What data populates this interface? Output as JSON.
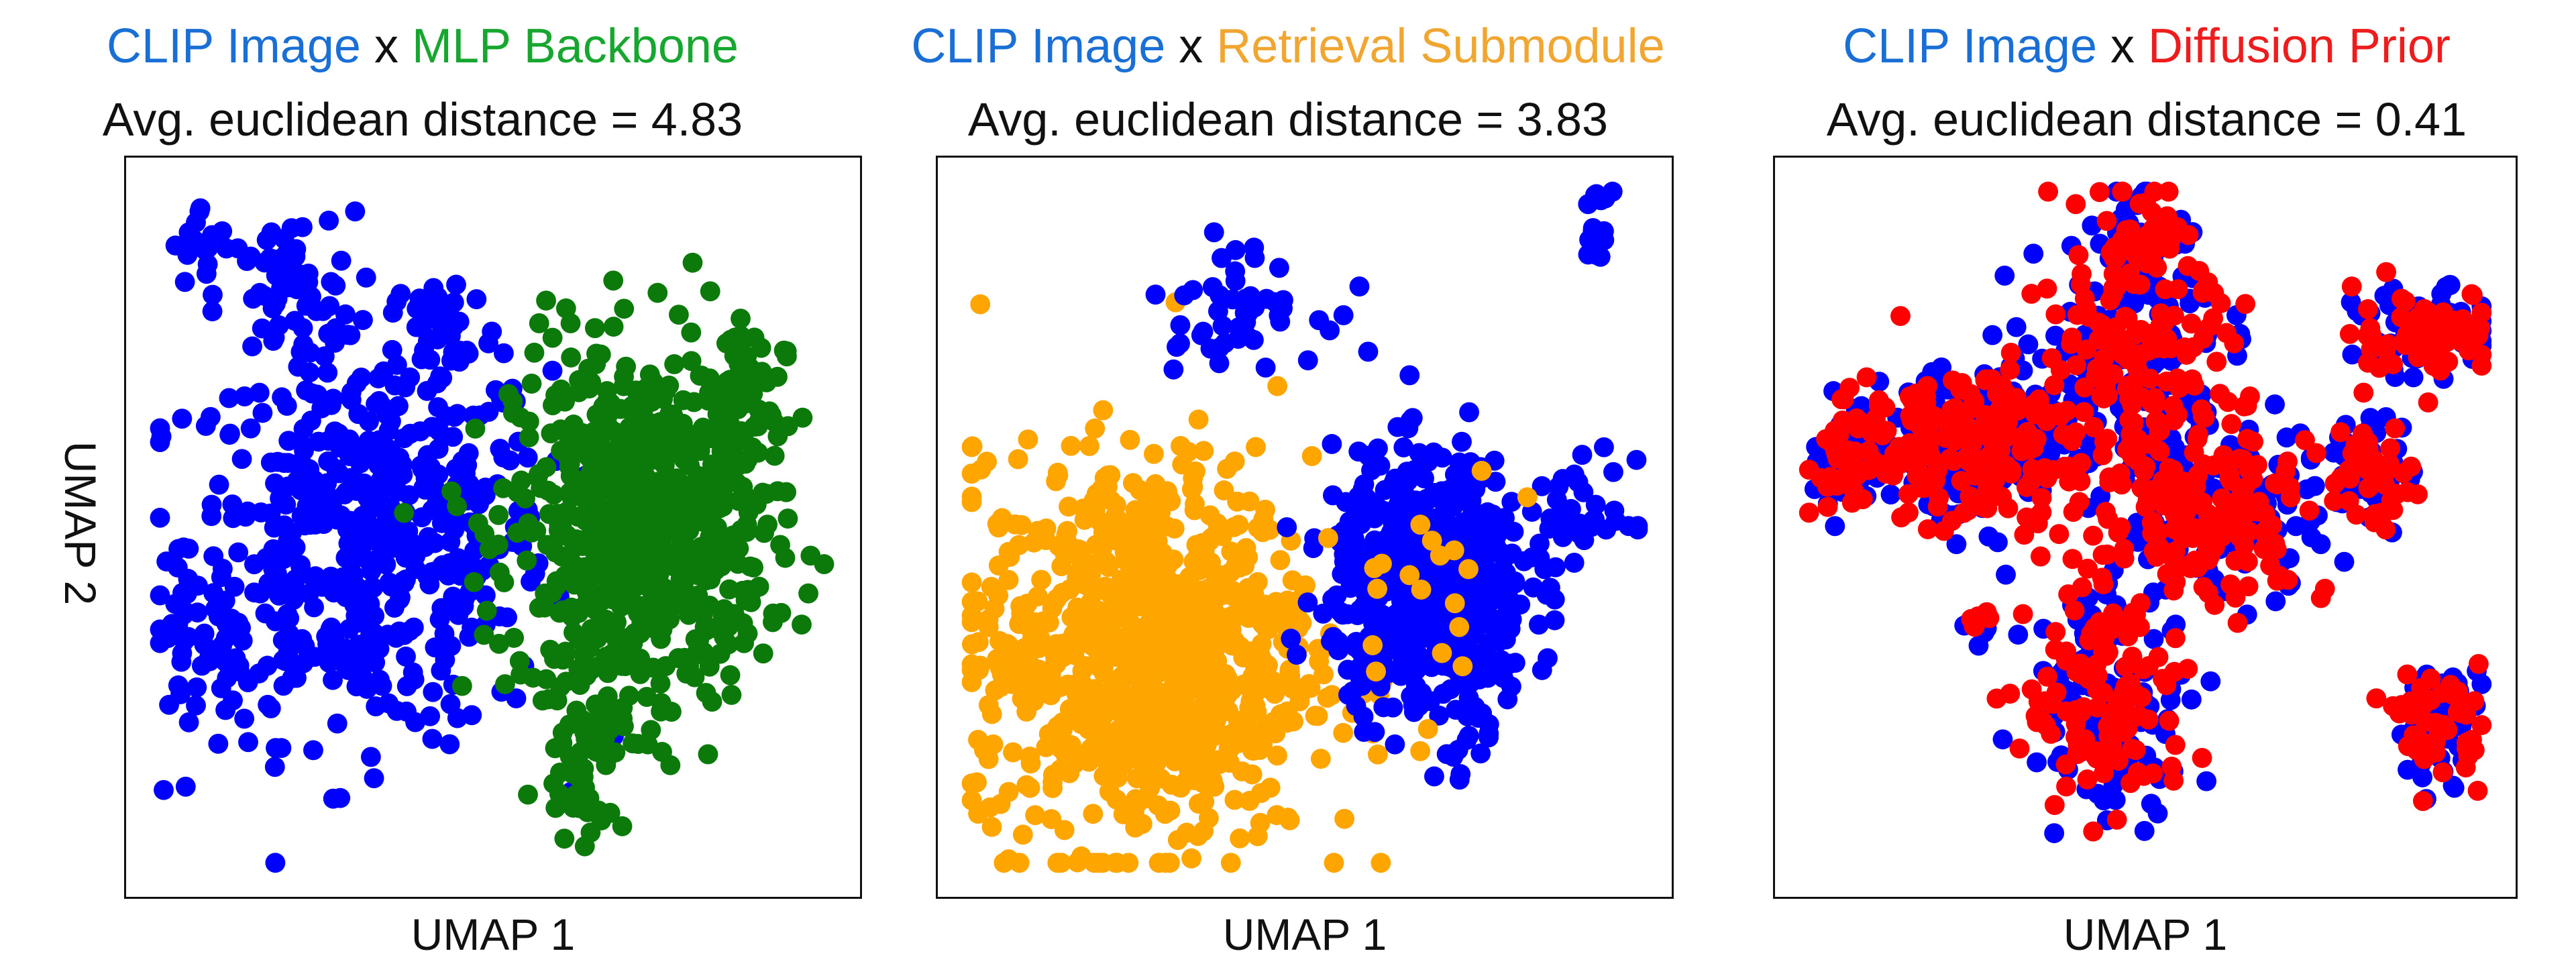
{
  "colors": {
    "clip": "#1a6fd6",
    "mlp": "#17a62f",
    "retrieval": "#f0a631",
    "diffusion": "#ee1c1c",
    "blue_pts": "#0000ff",
    "green_pts": "#0b7a0b",
    "orange_pts": "#ffa500",
    "red_pts": "#ff0000"
  },
  "panels": [
    {
      "title_a": "CLIP Image",
      "sep": "x",
      "title_b": "MLP Backbone",
      "subtitle": "Avg. euclidean distance = 4.83",
      "xlabel": "UMAP 1",
      "ylabel": "UMAP 2"
    },
    {
      "title_a": "CLIP Image",
      "sep": "x",
      "title_b": "Retrieval Submodule",
      "subtitle": "Avg. euclidean distance = 3.83",
      "xlabel": "UMAP 1"
    },
    {
      "title_a": "CLIP Image",
      "sep": "x",
      "title_b": "Diffusion Prior",
      "subtitle": "Avg. euclidean distance = 0.41",
      "xlabel": "UMAP 1"
    }
  ],
  "chart_data": [
    {
      "type": "scatter",
      "title": "CLIP Image x MLP Backbone",
      "subtitle": "Avg. euclidean distance = 4.83",
      "xlabel": "UMAP 1",
      "ylabel": "UMAP 2",
      "series": [
        {
          "name": "CLIP Image",
          "color": "#0000ff",
          "clusters": [
            {
              "x": 0.32,
              "y": 0.48,
              "sx": 0.13,
              "sy": 0.14,
              "n": 520
            },
            {
              "x": 0.08,
              "y": 0.33,
              "sx": 0.04,
              "sy": 0.05,
              "n": 40
            },
            {
              "x": 0.2,
              "y": 0.83,
              "sx": 0.05,
              "sy": 0.06,
              "n": 60
            },
            {
              "x": 0.43,
              "y": 0.78,
              "sx": 0.04,
              "sy": 0.05,
              "n": 40
            },
            {
              "x": 0.08,
              "y": 0.9,
              "sx": 0.02,
              "sy": 0.03,
              "n": 20
            }
          ]
        },
        {
          "name": "MLP Backbone",
          "color": "#0b7a0b",
          "clusters": [
            {
              "x": 0.71,
              "y": 0.5,
              "sx": 0.09,
              "sy": 0.13,
              "n": 700
            },
            {
              "x": 0.63,
              "y": 0.2,
              "sx": 0.03,
              "sy": 0.07,
              "n": 60
            },
            {
              "x": 0.86,
              "y": 0.68,
              "sx": 0.03,
              "sy": 0.06,
              "n": 60
            }
          ]
        }
      ]
    },
    {
      "type": "scatter",
      "title": "CLIP Image x Retrieval Submodule",
      "subtitle": "Avg. euclidean distance = 3.83",
      "xlabel": "UMAP 1",
      "series": [
        {
          "name": "Retrieval Submodule",
          "color": "#ffa500",
          "clusters": [
            {
              "x": 0.27,
              "y": 0.32,
              "sx": 0.12,
              "sy": 0.14,
              "n": 900
            }
          ]
        },
        {
          "name": "CLIP Image",
          "color": "#0000ff",
          "clusters": [
            {
              "x": 0.68,
              "y": 0.42,
              "sx": 0.07,
              "sy": 0.09,
              "n": 600
            },
            {
              "x": 0.4,
              "y": 0.82,
              "sx": 0.06,
              "sy": 0.04,
              "n": 50
            },
            {
              "x": 0.92,
              "y": 0.92,
              "sx": 0.01,
              "sy": 0.03,
              "n": 15
            },
            {
              "x": 0.9,
              "y": 0.52,
              "sx": 0.04,
              "sy": 0.04,
              "n": 40
            },
            {
              "x": 0.75,
              "y": 0.2,
              "sx": 0.02,
              "sy": 0.02,
              "n": 12
            }
          ]
        },
        {
          "name": "Retrieval Submodule (overlap)",
          "color": "#ffa500",
          "clusters": [
            {
              "x": 0.68,
              "y": 0.42,
              "sx": 0.06,
              "sy": 0.09,
              "n": 20
            }
          ]
        }
      ]
    },
    {
      "type": "scatter",
      "title": "CLIP Image x Diffusion Prior",
      "subtitle": "Avg. euclidean distance = 0.41",
      "xlabel": "UMAP 1",
      "series": [
        {
          "name": "CLIP Image",
          "color": "#0000ff",
          "clusters": [
            {
              "x": 0.25,
              "y": 0.62,
              "sx": 0.08,
              "sy": 0.06,
              "n": 150
            },
            {
              "x": 0.48,
              "y": 0.7,
              "sx": 0.08,
              "sy": 0.1,
              "n": 150
            },
            {
              "x": 0.6,
              "y": 0.52,
              "sx": 0.08,
              "sy": 0.06,
              "n": 120
            },
            {
              "x": 0.9,
              "y": 0.78,
              "sx": 0.05,
              "sy": 0.03,
              "n": 60
            },
            {
              "x": 0.45,
              "y": 0.25,
              "sx": 0.06,
              "sy": 0.08,
              "n": 120
            },
            {
              "x": 0.92,
              "y": 0.22,
              "sx": 0.03,
              "sy": 0.04,
              "n": 50
            },
            {
              "x": 0.5,
              "y": 0.9,
              "sx": 0.03,
              "sy": 0.05,
              "n": 50
            },
            {
              "x": 0.08,
              "y": 0.6,
              "sx": 0.03,
              "sy": 0.04,
              "n": 40
            },
            {
              "x": 0.26,
              "y": 0.36,
              "sx": 0.01,
              "sy": 0.01,
              "n": 8
            },
            {
              "x": 0.82,
              "y": 0.58,
              "sx": 0.03,
              "sy": 0.04,
              "n": 40
            }
          ]
        },
        {
          "name": "Diffusion Prior",
          "color": "#ff0000",
          "clusters": [
            {
              "x": 0.25,
              "y": 0.62,
              "sx": 0.08,
              "sy": 0.06,
              "n": 160
            },
            {
              "x": 0.48,
              "y": 0.7,
              "sx": 0.08,
              "sy": 0.1,
              "n": 170
            },
            {
              "x": 0.6,
              "y": 0.52,
              "sx": 0.08,
              "sy": 0.06,
              "n": 130
            },
            {
              "x": 0.9,
              "y": 0.78,
              "sx": 0.05,
              "sy": 0.03,
              "n": 70
            },
            {
              "x": 0.45,
              "y": 0.25,
              "sx": 0.06,
              "sy": 0.08,
              "n": 130
            },
            {
              "x": 0.92,
              "y": 0.22,
              "sx": 0.03,
              "sy": 0.04,
              "n": 50
            },
            {
              "x": 0.5,
              "y": 0.9,
              "sx": 0.03,
              "sy": 0.05,
              "n": 50
            },
            {
              "x": 0.08,
              "y": 0.6,
              "sx": 0.03,
              "sy": 0.04,
              "n": 45
            },
            {
              "x": 0.26,
              "y": 0.36,
              "sx": 0.01,
              "sy": 0.01,
              "n": 8
            },
            {
              "x": 0.82,
              "y": 0.58,
              "sx": 0.03,
              "sy": 0.04,
              "n": 40
            }
          ]
        }
      ]
    }
  ]
}
